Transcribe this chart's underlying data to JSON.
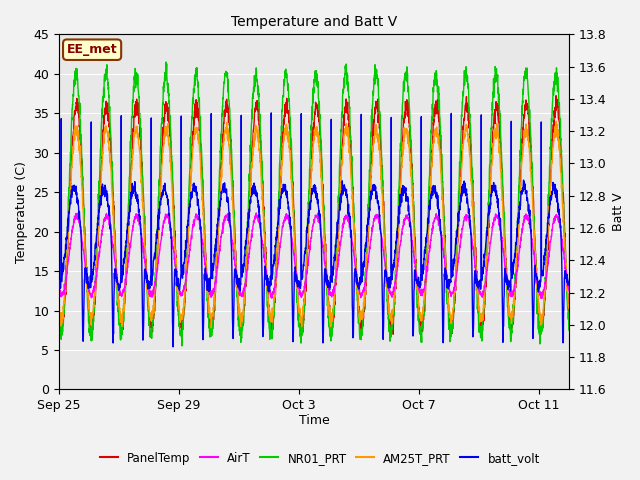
{
  "title": "Temperature and Batt V",
  "xlabel": "Time",
  "ylabel_left": "Temperature (C)",
  "ylabel_right": "Batt V",
  "annotation": "EE_met",
  "ylim_left": [
    0,
    45
  ],
  "ylim_right": [
    11.6,
    13.8
  ],
  "xtick_labels": [
    "Sep 25",
    "Sep 29",
    "Oct 3",
    "Oct 7",
    "Oct 11"
  ],
  "xtick_positions": [
    0,
    4,
    8,
    12,
    16
  ],
  "ytick_left": [
    0,
    5,
    10,
    15,
    20,
    25,
    30,
    35,
    40,
    45
  ],
  "ytick_right": [
    11.6,
    11.8,
    12.0,
    12.2,
    12.4,
    12.6,
    12.8,
    13.0,
    13.2,
    13.4,
    13.6,
    13.8
  ],
  "legend_entries": [
    "PanelTemp",
    "AirT",
    "NR01_PRT",
    "AM25T_PRT",
    "batt_volt"
  ],
  "legend_colors": [
    "#dd0000",
    "#ff00ff",
    "#00cc00",
    "#ff9900",
    "#0000ee"
  ],
  "line_width": 1.0,
  "n_days": 17,
  "pts_per_day": 144
}
